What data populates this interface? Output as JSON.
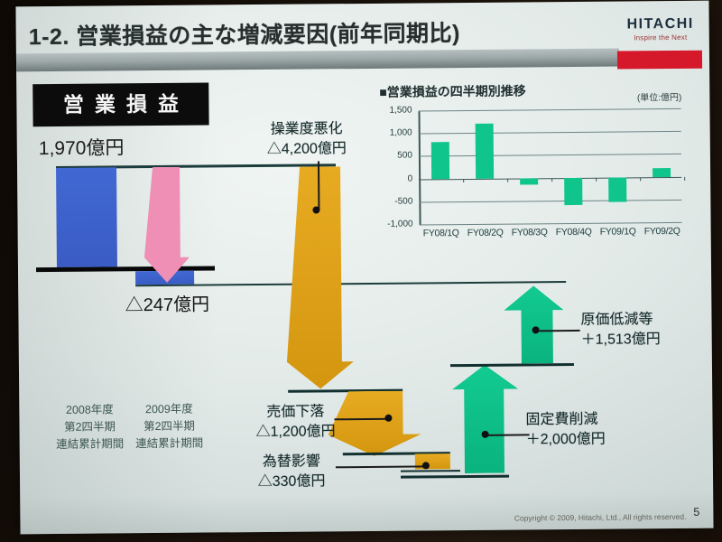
{
  "slide": {
    "title": "1-2. 営業損益の主な増減要因(前年同期比)",
    "page_number": "5",
    "copyright": "Copyright © 2009, Hitachi, Ltd., All rights reserved."
  },
  "logo": {
    "brand": "HITACHI",
    "tagline": "Inspire the Next"
  },
  "colors": {
    "hitachi_red": "#d6182b",
    "blue_bar": "#3e63cc",
    "pink_arrow": "#f08fb5",
    "orange_arrow": "#e0a31c",
    "green_arrow": "#10c58c",
    "line_dark_teal": "#1c3c3c",
    "slide_background": "#e3ebe9"
  },
  "chart_data": [
    {
      "type": "bar",
      "title": "営業損益",
      "unit": "億円",
      "categories": [
        "2008年度 第2四半期 連結累計期間",
        "2009年度 第2四半期 連結累計期間"
      ],
      "category_display": [
        "2008年度\n第2四半期\n連結累計期間",
        "2009年度\n第2四半期\n連結累計期間"
      ],
      "values": [
        1970,
        -247
      ],
      "start_display": "1,970億円",
      "end_display": "△247億円",
      "bar_color": "#3e63cc"
    },
    {
      "type": "waterfall",
      "title": "営業損益の主な増減要因(前年同期比)",
      "unit": "億円",
      "start": {
        "label": "2008年度 第2四半期 連結累計期間",
        "value": 1970
      },
      "steps": [
        {
          "label": "操業度悪化",
          "value": -4200,
          "display": "△4,200億円"
        },
        {
          "label": "売価下落",
          "value": -1200,
          "display": "△1,200億円"
        },
        {
          "label": "為替影響",
          "value": -330,
          "display": "△330億円"
        },
        {
          "label": "固定費削減",
          "value": 2000,
          "display": "＋2,000億円"
        },
        {
          "label": "原価低減等",
          "value": 1513,
          "display": "＋1,513億円"
        }
      ],
      "end": {
        "label": "2009年度 第2四半期 連結累計期間",
        "value": -247
      }
    },
    {
      "type": "bar",
      "title": "営業損益の四半期別推移",
      "title_display": "■営業損益の四半期別推移",
      "unit_label": "(単位:億円)",
      "unit": "億円",
      "categories": [
        "FY08/1Q",
        "FY08/2Q",
        "FY08/3Q",
        "FY08/4Q",
        "FY09/1Q",
        "FY09/2Q"
      ],
      "values": [
        800,
        1200,
        -150,
        -600,
        -540,
        200
      ],
      "ylim": [
        -1000,
        1500
      ],
      "yticks": [
        1500,
        1000,
        500,
        0,
        -500,
        -1000
      ],
      "ytick_labels": [
        "1,500",
        "1,000",
        "500",
        "0",
        "-500",
        "-1,000"
      ],
      "grid": true,
      "legend": false,
      "bar_color": "#10c58c"
    }
  ]
}
